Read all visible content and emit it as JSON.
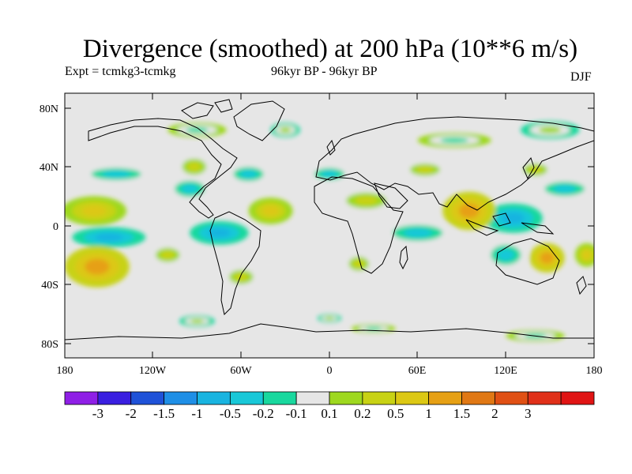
{
  "title": "Divergence (smoothed) at 200 hPa (10**6 m/s)",
  "experiment": "Expt = tcmkg3-tcmkg",
  "period": "96kyr BP - 96kyr BP",
  "season": "DJF",
  "axes": {
    "lat_labels": [
      "80N",
      "40N",
      "0",
      "40S",
      "80S"
    ],
    "lon_labels": [
      "180",
      "120W",
      "60W",
      "0",
      "60E",
      "120E",
      "180"
    ]
  },
  "colorbar": {
    "colors": [
      "#8f1fe6",
      "#3a1fe0",
      "#1f52d8",
      "#1f8fe6",
      "#19b4e0",
      "#19c8d8",
      "#19d89e",
      "#e6e6e6",
      "#9ed81f",
      "#c8d214",
      "#dcc814",
      "#e6a014",
      "#e07814",
      "#e05014",
      "#e03019",
      "#e01414"
    ],
    "labels": [
      "-3",
      "-2",
      "-1.5",
      "-1",
      "-0.5",
      "-0.2",
      "-0.1",
      "0.1",
      "0.2",
      "0.5",
      "1",
      "1.5",
      "2",
      "3"
    ]
  },
  "fields": {
    "background": "#e6e6e6",
    "positive": [
      {
        "lon": -160,
        "lat": 10,
        "rlon": 22,
        "rlat": 10,
        "level": 10
      },
      {
        "lon": -158,
        "lat": -28,
        "rlon": 22,
        "rlat": 14,
        "level": 11
      },
      {
        "lon": -92,
        "lat": 40,
        "rlon": 12,
        "rlat": 8,
        "level": 9
      },
      {
        "lon": -40,
        "lat": 10,
        "rlon": 15,
        "rlat": 9,
        "level": 10
      },
      {
        "lon": 25,
        "lat": 17,
        "rlon": 20,
        "rlat": 8,
        "level": 9
      },
      {
        "lon": 95,
        "lat": 10,
        "rlon": 18,
        "rlat": 13,
        "level": 11
      },
      {
        "lon": 148,
        "lat": -22,
        "rlon": 12,
        "rlat": 10,
        "level": 11
      },
      {
        "lon": 20,
        "lat": -26,
        "rlon": 10,
        "rlat": 7,
        "level": 9
      },
      {
        "lon": -60,
        "lat": -35,
        "rlon": 12,
        "rlat": 7,
        "level": 9
      },
      {
        "lon": -110,
        "lat": -20,
        "rlon": 12,
        "rlat": 7,
        "level": 9
      },
      {
        "lon": 65,
        "lat": 38,
        "rlon": 15,
        "rlat": 6,
        "level": 9
      },
      {
        "lon": 140,
        "lat": 38,
        "rlon": 12,
        "rlat": 6,
        "level": 9
      },
      {
        "lon": -30,
        "lat": 65,
        "rlon": 10,
        "rlat": 5,
        "level": 8
      },
      {
        "lon": 150,
        "lat": 65,
        "rlon": 20,
        "rlat": 6,
        "level": 8
      },
      {
        "lon": -90,
        "lat": -65,
        "rlon": 12,
        "rlat": 4,
        "level": 8
      },
      {
        "lon": 0,
        "lat": -63,
        "rlon": 8,
        "rlat": 3,
        "level": 8
      },
      {
        "lon": 175,
        "lat": -20,
        "rlon": 8,
        "rlat": 8,
        "level": 10
      }
    ],
    "negative": [
      {
        "lon": -150,
        "lat": -8,
        "rlon": 25,
        "rlat": 7,
        "level": 4
      },
      {
        "lon": -145,
        "lat": 35,
        "rlon": 25,
        "rlat": 6,
        "level": 5
      },
      {
        "lon": -95,
        "lat": 25,
        "rlon": 15,
        "rlat": 8,
        "level": 5
      },
      {
        "lon": -75,
        "lat": -5,
        "rlon": 20,
        "rlat": 8,
        "level": 4
      },
      {
        "lon": -55,
        "lat": 35,
        "rlon": 15,
        "rlat": 7,
        "level": 5
      },
      {
        "lon": 0,
        "lat": 35,
        "rlon": 15,
        "rlat": 6,
        "level": 5
      },
      {
        "lon": 60,
        "lat": -5,
        "rlon": 25,
        "rlat": 8,
        "level": 5
      },
      {
        "lon": 125,
        "lat": 5,
        "rlon": 20,
        "rlat": 10,
        "level": 4
      },
      {
        "lon": 120,
        "lat": -20,
        "rlon": 15,
        "rlat": 10,
        "level": 5
      },
      {
        "lon": 160,
        "lat": 25,
        "rlon": 20,
        "rlat": 7,
        "level": 5
      },
      {
        "lon": 85,
        "lat": 58,
        "rlon": 25,
        "rlat": 5,
        "level": 6
      },
      {
        "lon": -90,
        "lat": 65,
        "rlon": 20,
        "rlat": 5,
        "level": 6
      },
      {
        "lon": 140,
        "lat": -75,
        "rlon": 20,
        "rlat": 4,
        "level": 6
      },
      {
        "lon": 30,
        "lat": -70,
        "rlon": 15,
        "rlat": 3,
        "level": 6
      }
    ]
  }
}
